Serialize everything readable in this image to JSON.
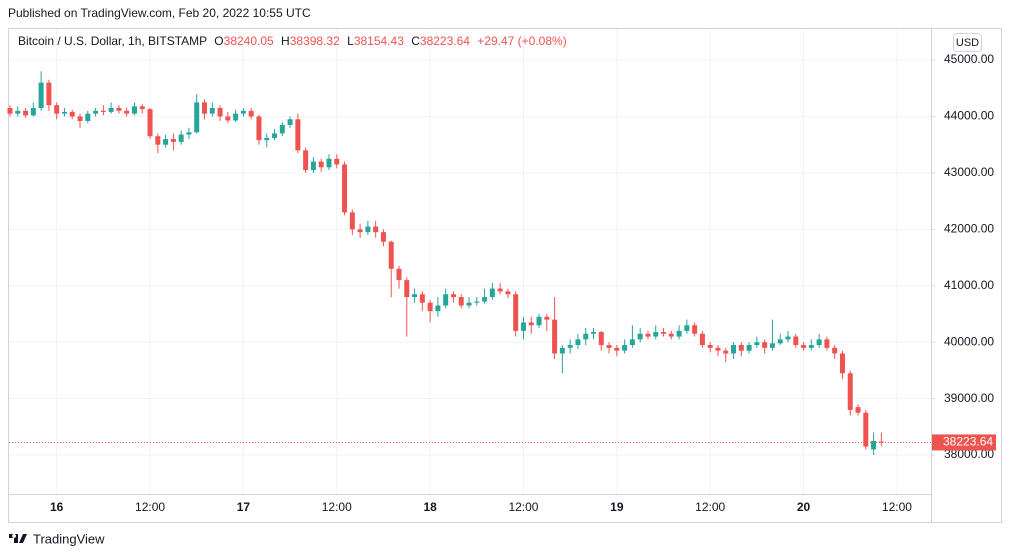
{
  "page": {
    "published": "Published on TradingView.com, Feb 20, 2022 10:55 UTC",
    "currency": "USD",
    "brand": "TradingView"
  },
  "chart_data": {
    "type": "candlestick",
    "title": "Bitcoin / U.S. Dollar, 1h, BITSTAMP",
    "ohlc_labels": [
      "O",
      "H",
      "L",
      "C"
    ],
    "change": "+29.47 (+0.08%)",
    "categories": [
      null,
      null,
      null,
      null,
      null,
      null,
      "16",
      null,
      null,
      null,
      null,
      null,
      null,
      null,
      null,
      null,
      null,
      null,
      "12:00",
      null,
      null,
      null,
      null,
      null,
      null,
      null,
      null,
      null,
      null,
      null,
      "17",
      null,
      null,
      null,
      null,
      null,
      null,
      null,
      null,
      null,
      null,
      null,
      "12:00",
      null,
      null,
      null,
      null,
      null,
      null,
      null,
      null,
      null,
      null,
      null,
      "18",
      null,
      null,
      null,
      null,
      null,
      null,
      null,
      null,
      null,
      null,
      null,
      "12:00",
      null,
      null,
      null,
      null,
      null,
      null,
      null,
      null,
      null,
      null,
      null,
      "19",
      null,
      null,
      null,
      null,
      null,
      null,
      null,
      null,
      null,
      null,
      null,
      "12:00",
      null,
      null,
      null,
      null,
      null,
      null,
      null,
      null,
      null,
      null,
      null,
      "20",
      null,
      null,
      null,
      null,
      null,
      null,
      null,
      null,
      null,
      null,
      null,
      "12:00"
    ],
    "open": [
      44150,
      44050,
      44100,
      44020,
      44150,
      44600,
      44200,
      44050,
      44080,
      44000,
      43920,
      44050,
      44100,
      44080,
      44150,
      44100,
      44050,
      44180,
      44130,
      43650,
      43500,
      43600,
      43550,
      43680,
      43720,
      44250,
      44050,
      44150,
      44000,
      43930,
      44050,
      44100,
      44000,
      43580,
      43620,
      43700,
      43850,
      43950,
      43400,
      43050,
      43200,
      43100,
      43250,
      43150,
      42300,
      42000,
      41950,
      42050,
      41950,
      41780,
      41300,
      41100,
      40800,
      40850,
      40700,
      40550,
      40650,
      40850,
      40800,
      40650,
      40700,
      40720,
      40800,
      40950,
      40900,
      40850,
      40200,
      40350,
      40300,
      40450,
      40400,
      39800,
      39900,
      39950,
      40050,
      40150,
      40180,
      39950,
      39900,
      39850,
      39950,
      40050,
      40150,
      40100,
      40180,
      40150,
      40100,
      40200,
      40300,
      40150,
      39950,
      39900,
      39850,
      39800,
      39950,
      39850,
      39950,
      40000,
      39900,
      39980,
      40050,
      40100,
      39950,
      39900,
      39950,
      40050,
      39900,
      39800,
      39450,
      38850,
      38750,
      38100,
      38240.05,
      null,
      null
    ],
    "high": [
      44200,
      44180,
      44150,
      44250,
      44800,
      44650,
      44250,
      44150,
      44120,
      44050,
      44100,
      44150,
      44200,
      44250,
      44200,
      44160,
      44250,
      44220,
      44150,
      43700,
      43680,
      43700,
      43750,
      43800,
      44400,
      44300,
      44250,
      44200,
      44080,
      44120,
      44150,
      44150,
      44030,
      43700,
      43780,
      43900,
      44000,
      44050,
      43450,
      43280,
      43250,
      43330,
      43330,
      43200,
      42350,
      42100,
      42150,
      42150,
      42000,
      41800,
      41350,
      41150,
      40950,
      40900,
      40750,
      40800,
      40950,
      40900,
      40850,
      40800,
      40800,
      40950,
      41050,
      41050,
      40950,
      40900,
      40450,
      40450,
      40500,
      40500,
      40800,
      39950,
      40050,
      40150,
      40250,
      40250,
      40200,
      40000,
      39950,
      40050,
      40300,
      40250,
      40200,
      40300,
      40250,
      40200,
      40300,
      40400,
      40350,
      40200,
      40000,
      39950,
      39900,
      40000,
      40000,
      40000,
      40100,
      40050,
      40400,
      40150,
      40200,
      40150,
      40000,
      40050,
      40150,
      40100,
      39950,
      39850,
      39500,
      38900,
      38800,
      38400,
      38398.32,
      null,
      null
    ],
    "low": [
      44000,
      44000,
      43980,
      44000,
      44100,
      44100,
      43950,
      44000,
      43950,
      43800,
      43880,
      44000,
      44020,
      44050,
      44050,
      44000,
      44020,
      44050,
      43600,
      43350,
      43450,
      43400,
      43500,
      43600,
      43700,
      43950,
      44000,
      43920,
      43880,
      43900,
      44000,
      43950,
      43500,
      43450,
      43580,
      43650,
      43800,
      43350,
      43000,
      43000,
      43020,
      43050,
      43080,
      42250,
      41900,
      41850,
      41900,
      41850,
      41700,
      40800,
      40950,
      40100,
      40700,
      40550,
      40350,
      40450,
      40600,
      40700,
      40600,
      40600,
      40650,
      40680,
      40750,
      40850,
      40780,
      40100,
      40050,
      40150,
      40250,
      40200,
      39700,
      39450,
      39800,
      39880,
      39950,
      40050,
      39850,
      39800,
      39750,
      39800,
      39900,
      40000,
      40050,
      40050,
      40100,
      40050,
      40050,
      40150,
      40100,
      39900,
      39820,
      39750,
      39650,
      39700,
      39750,
      39800,
      39900,
      39800,
      39850,
      39950,
      40000,
      39900,
      39850,
      39850,
      39900,
      39850,
      39700,
      39350,
      38700,
      38700,
      38100,
      38000,
      38154.43,
      null,
      null
    ],
    "close": [
      44050,
      44100,
      44020,
      44150,
      44600,
      44200,
      44050,
      44080,
      44000,
      43920,
      44050,
      44100,
      44080,
      44150,
      44100,
      44050,
      44180,
      44130,
      43650,
      43500,
      43600,
      43550,
      43680,
      43720,
      44250,
      44050,
      44150,
      44000,
      43930,
      44050,
      44100,
      44000,
      43580,
      43620,
      43700,
      43850,
      43950,
      43400,
      43050,
      43200,
      43100,
      43250,
      43150,
      42300,
      42000,
      41950,
      42050,
      41950,
      41780,
      41300,
      41100,
      40800,
      40850,
      40700,
      40550,
      40650,
      40850,
      40800,
      40650,
      40700,
      40720,
      40800,
      40950,
      40900,
      40850,
      40200,
      40350,
      40300,
      40450,
      40400,
      39800,
      39900,
      39950,
      40050,
      40150,
      40180,
      39950,
      39900,
      39850,
      39950,
      40050,
      40150,
      40100,
      40180,
      40150,
      40100,
      40200,
      40300,
      40150,
      39950,
      39900,
      39850,
      39800,
      39950,
      39850,
      39950,
      40000,
      39900,
      39980,
      40050,
      40100,
      39950,
      39900,
      39950,
      40050,
      39900,
      39800,
      39450,
      38800,
      38750,
      38150,
      38250,
      38223.64,
      null,
      null
    ],
    "up_color": "#26a69a",
    "down_color": "#ef5350",
    "ylim": [
      37310,
      45550
    ],
    "yticks": [
      {
        "value": 38000,
        "label": "38000.00"
      },
      {
        "value": 39000,
        "label": "39000.00"
      },
      {
        "value": 40000,
        "label": "40000.00"
      },
      {
        "value": 41000,
        "label": "41000.00"
      },
      {
        "value": 42000,
        "label": "42000.00"
      },
      {
        "value": 43000,
        "label": "43000.00"
      },
      {
        "value": 44000,
        "label": "44000.00"
      },
      {
        "value": 45000,
        "label": "45000.00"
      }
    ],
    "grid": true
  }
}
